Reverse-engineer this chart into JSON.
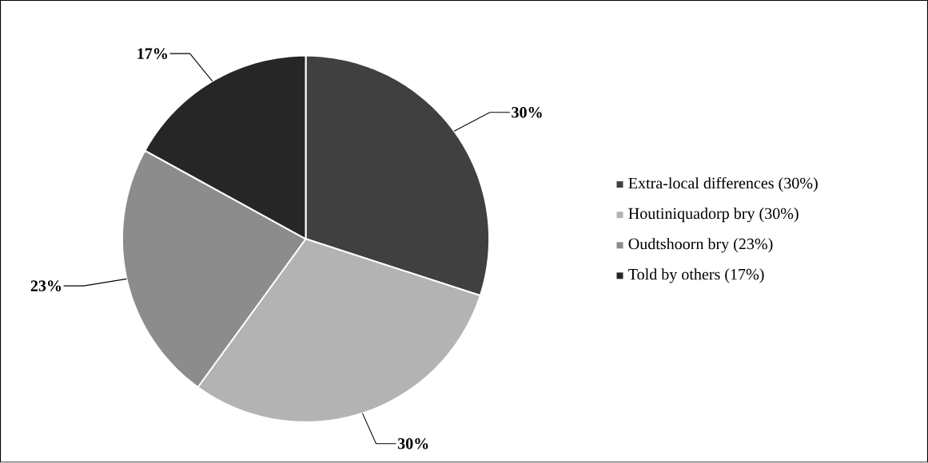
{
  "chart_data": {
    "type": "pie",
    "categories": [
      "Extra-local differences (30%)",
      "Houtiniquadorp bry (30%)",
      "Oudtshoorn bry (23%)",
      "Told by others (17%)"
    ],
    "values": [
      30,
      30,
      23,
      17
    ],
    "colors": [
      "#404040",
      "#b3b3b3",
      "#8c8c8c",
      "#262626"
    ],
    "value_labels": [
      "30%",
      "30%",
      "23%",
      "17%"
    ],
    "legend": "right"
  }
}
